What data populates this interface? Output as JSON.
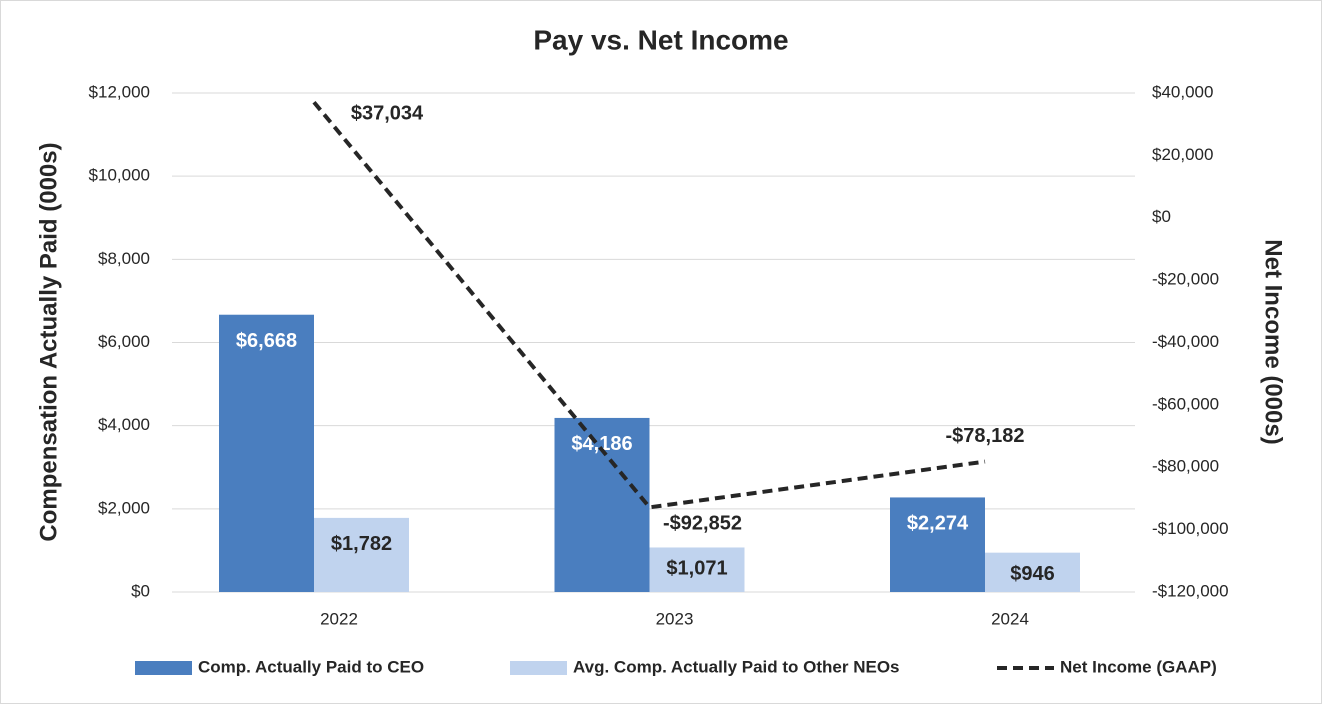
{
  "chart_data": {
    "type": "bar",
    "title": "Pay vs. Net Income",
    "y_label": "Compensation Actually Paid (000s)",
    "y2_label": "Net Income (000s)",
    "categories": [
      "2022",
      "2023",
      "2024"
    ],
    "series": [
      {
        "name": "Comp. Actually Paid to CEO",
        "color": "#4a7ebf",
        "type": "bar",
        "values": [
          6668,
          4186,
          2274
        ],
        "value_labels": [
          "$6,668",
          "$4,186",
          "$2,274"
        ]
      },
      {
        "name": "Avg. Comp. Actually Paid to Other NEOs",
        "color": "#c0d3ee",
        "type": "bar",
        "values": [
          1782,
          1071,
          946
        ],
        "value_labels": [
          "$1,782",
          "$1,071",
          "$946"
        ]
      },
      {
        "name": "Net Income (GAAP)",
        "color": "#262626",
        "type": "line",
        "dashed": true,
        "axis": "y2",
        "values": [
          37034,
          -92852,
          -78182
        ],
        "value_labels": [
          "$37,034",
          "-$92,852",
          "-$78,182"
        ]
      }
    ],
    "ylim": [
      0,
      12000
    ],
    "yticks": [
      {
        "value": 0,
        "label": "$0"
      },
      {
        "value": 2000,
        "label": "$2,000"
      },
      {
        "value": 4000,
        "label": "$4,000"
      },
      {
        "value": 6000,
        "label": "$6,000"
      },
      {
        "value": 8000,
        "label": "$8,000"
      },
      {
        "value": 10000,
        "label": "$10,000"
      },
      {
        "value": 12000,
        "label": "$12,000"
      }
    ],
    "y2lim": [
      -120000,
      40000
    ],
    "y2ticks": [
      {
        "value": -120000,
        "label": "-$120,000"
      },
      {
        "value": -100000,
        "label": "-$100,000"
      },
      {
        "value": -80000,
        "label": "-$80,000"
      },
      {
        "value": -60000,
        "label": "-$60,000"
      },
      {
        "value": -40000,
        "label": "-$40,000"
      },
      {
        "value": -20000,
        "label": "-$20,000"
      },
      {
        "value": 0,
        "label": "$0"
      },
      {
        "value": 20000,
        "label": "$20,000"
      },
      {
        "value": 40000,
        "label": "$40,000"
      }
    ],
    "grid": true,
    "legend": "bottom"
  }
}
